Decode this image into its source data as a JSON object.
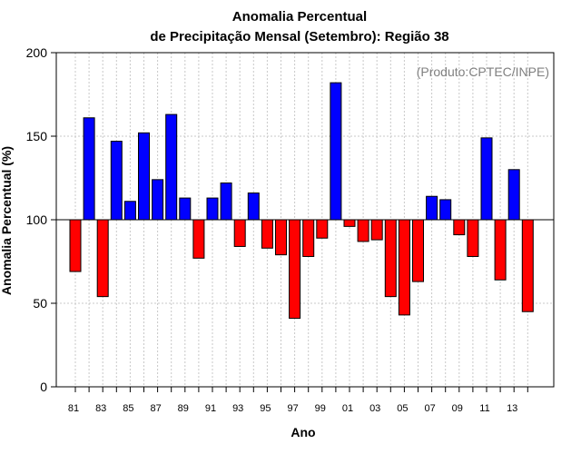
{
  "chart_data": {
    "type": "bar",
    "title": "Anomalia Percentual",
    "subtitle": "de Precipitação Mensal (Setembro): Região 38",
    "xlabel": "Ano",
    "ylabel": "Anomalia Percentual (%)",
    "source_label": "(Produto:CPTEC/INPE)",
    "ylim": [
      0,
      200
    ],
    "yticks": [
      0,
      50,
      100,
      150,
      200
    ],
    "baseline": 100,
    "grid": true,
    "colors": {
      "above": "#0000ff",
      "below": "#ff0000",
      "reference_line": "#000000"
    },
    "categories": [
      "81",
      "82",
      "83",
      "84",
      "85",
      "86",
      "87",
      "88",
      "89",
      "90",
      "91",
      "92",
      "93",
      "94",
      "95",
      "96",
      "97",
      "98",
      "99",
      "00",
      "01",
      "02",
      "03",
      "04",
      "05",
      "06",
      "07",
      "08",
      "09",
      "10",
      "11",
      "12",
      "13",
      "14"
    ],
    "tick_labels": [
      "81",
      "83",
      "85",
      "87",
      "89",
      "91",
      "93",
      "95",
      "97",
      "99",
      "01",
      "03",
      "05",
      "07",
      "09",
      "11",
      "13"
    ],
    "values": [
      69,
      161,
      54,
      147,
      111,
      152,
      124,
      163,
      113,
      77,
      113,
      122,
      84,
      116,
      83,
      79,
      41,
      78,
      89,
      182,
      96,
      87,
      88,
      54,
      43,
      63,
      114,
      112,
      91,
      78,
      149,
      64,
      130,
      45
    ]
  }
}
